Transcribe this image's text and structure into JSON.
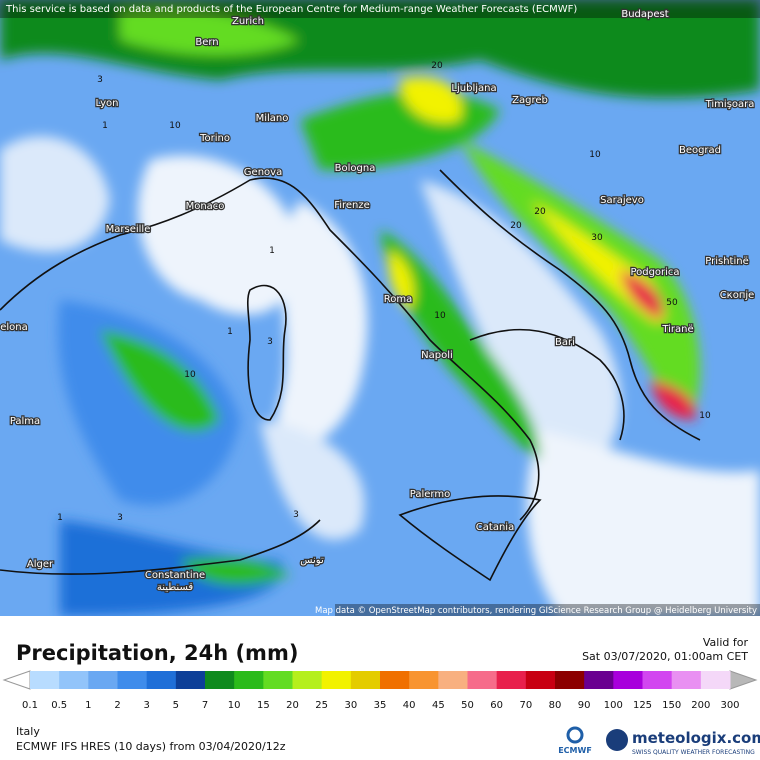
{
  "header": {
    "attribution": "This service is based on data and products of the European Centre for Medium-range Weather Forecasts (ECMWF)"
  },
  "map": {
    "cities": [
      "Zurich",
      "Budapest",
      "Bern",
      "Lyon",
      "Milano",
      "Ljubljana",
      "Zagreb",
      "Timişoara",
      "Torino",
      "Beograd",
      "Bologna",
      "Genova",
      "Monaco",
      "Firenze",
      "Sarajevo",
      "Marseille",
      "Podgorica",
      "Prishtinë",
      "Roma",
      "Скопје",
      "elona",
      "Tiranë",
      "Bari",
      "Napoli",
      "Palma",
      "Palermo",
      "Catania",
      "Alger",
      "تونس",
      "Constantine",
      "قسنطينة"
    ],
    "contour_labels": [
      "20",
      "3",
      "10",
      "10",
      "20",
      "30",
      "20",
      "50",
      "10",
      "1",
      "10",
      "3",
      "1",
      "3",
      "10",
      "1",
      "3",
      "1"
    ],
    "credit": "Map data © OpenStreetMap contributors, rendering GIScience Research Group @ Heidelberg University"
  },
  "panel": {
    "title": "Precipitation, 24h (mm)",
    "valid_label": "Valid for",
    "valid_time": "Sat 03/07/2020, 01:00am CET",
    "legend": {
      "ticks": [
        0.1,
        0.5,
        1,
        2,
        3,
        5,
        7,
        10,
        15,
        20,
        25,
        30,
        35,
        40,
        45,
        50,
        60,
        70,
        80,
        90,
        100,
        125,
        150,
        200,
        300
      ],
      "colors": [
        "#b8dcff",
        "#92c4fa",
        "#6aa8f2",
        "#3f8ceb",
        "#1f6fd8",
        "#0d3f98",
        "#0f8a1e",
        "#2bbb1b",
        "#63dc22",
        "#b5ef1c",
        "#f2f200",
        "#e4cc00",
        "#f07000",
        "#f89430",
        "#f8b080",
        "#f66c8a",
        "#e8204c",
        "#c80012",
        "#8c0000",
        "#6a0090",
        "#a800dc",
        "#d246f0",
        "#e990f2",
        "#f4d8f8"
      ],
      "below_color": "#ffffff",
      "above_color": "#b8b8b8"
    },
    "region": "Italy",
    "model": "ECMWF IFS HRES (10 days) from 03/04/2020/12z",
    "ecmwf_logo": "ECMWF",
    "brand": "meteologix.com",
    "tagline": "SWISS QUALITY WEATHER FORECASTING"
  }
}
